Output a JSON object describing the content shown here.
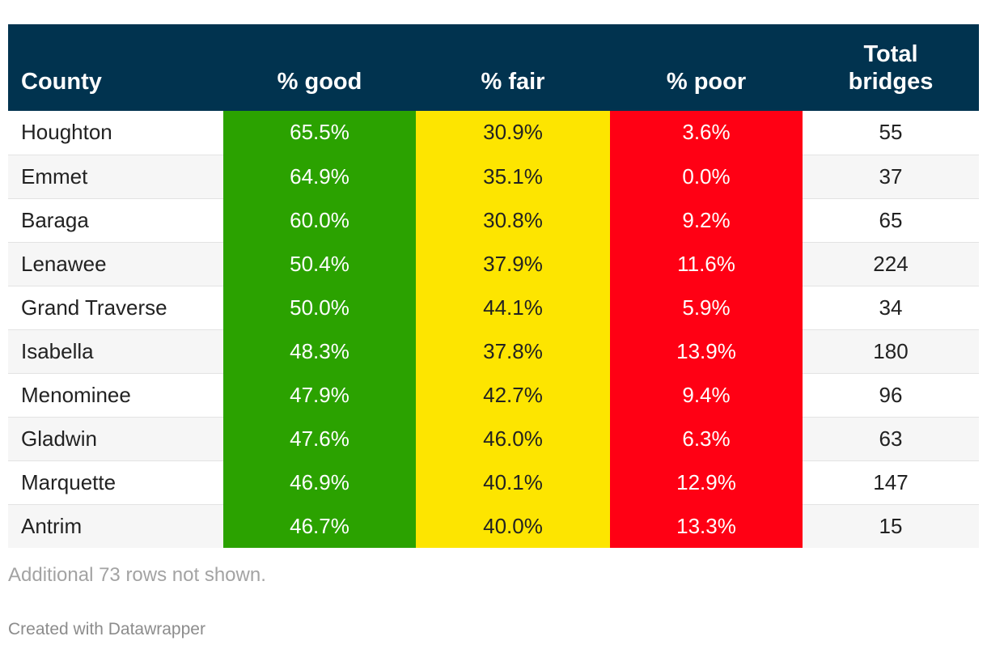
{
  "chart_data": {
    "type": "table",
    "columns": [
      "County",
      "% good",
      "% fair",
      "% poor",
      "Total bridges"
    ],
    "rows": [
      {
        "county": "Houghton",
        "good": "65.5%",
        "fair": "30.9%",
        "poor": "3.6%",
        "total": "55"
      },
      {
        "county": "Emmet",
        "good": "64.9%",
        "fair": "35.1%",
        "poor": "0.0%",
        "total": "37"
      },
      {
        "county": "Baraga",
        "good": "60.0%",
        "fair": "30.8%",
        "poor": "9.2%",
        "total": "65"
      },
      {
        "county": "Lenawee",
        "good": "50.4%",
        "fair": "37.9%",
        "poor": "11.6%",
        "total": "224"
      },
      {
        "county": "Grand Traverse",
        "good": "50.0%",
        "fair": "44.1%",
        "poor": "5.9%",
        "total": "34"
      },
      {
        "county": "Isabella",
        "good": "48.3%",
        "fair": "37.8%",
        "poor": "13.9%",
        "total": "180"
      },
      {
        "county": "Menominee",
        "good": "47.9%",
        "fair": "42.7%",
        "poor": "9.4%",
        "total": "96"
      },
      {
        "county": "Gladwin",
        "good": "47.6%",
        "fair": "46.0%",
        "poor": "6.3%",
        "total": "63"
      },
      {
        "county": "Marquette",
        "good": "46.9%",
        "fair": "40.1%",
        "poor": "12.9%",
        "total": "147"
      },
      {
        "county": "Antrim",
        "good": "46.7%",
        "fair": "40.0%",
        "poor": "13.3%",
        "total": "15"
      }
    ],
    "colors": {
      "header_bg": "#01334f",
      "good": "#2ba200",
      "fair": "#fde500",
      "poor": "#ff0014"
    }
  },
  "headers": {
    "county": "County",
    "good": "% good",
    "fair": "% fair",
    "poor": "% poor",
    "total_line1": "Total",
    "total_line2": "bridges"
  },
  "footer": {
    "note": "Additional 73 rows not shown.",
    "credit": "Created with Datawrapper"
  }
}
